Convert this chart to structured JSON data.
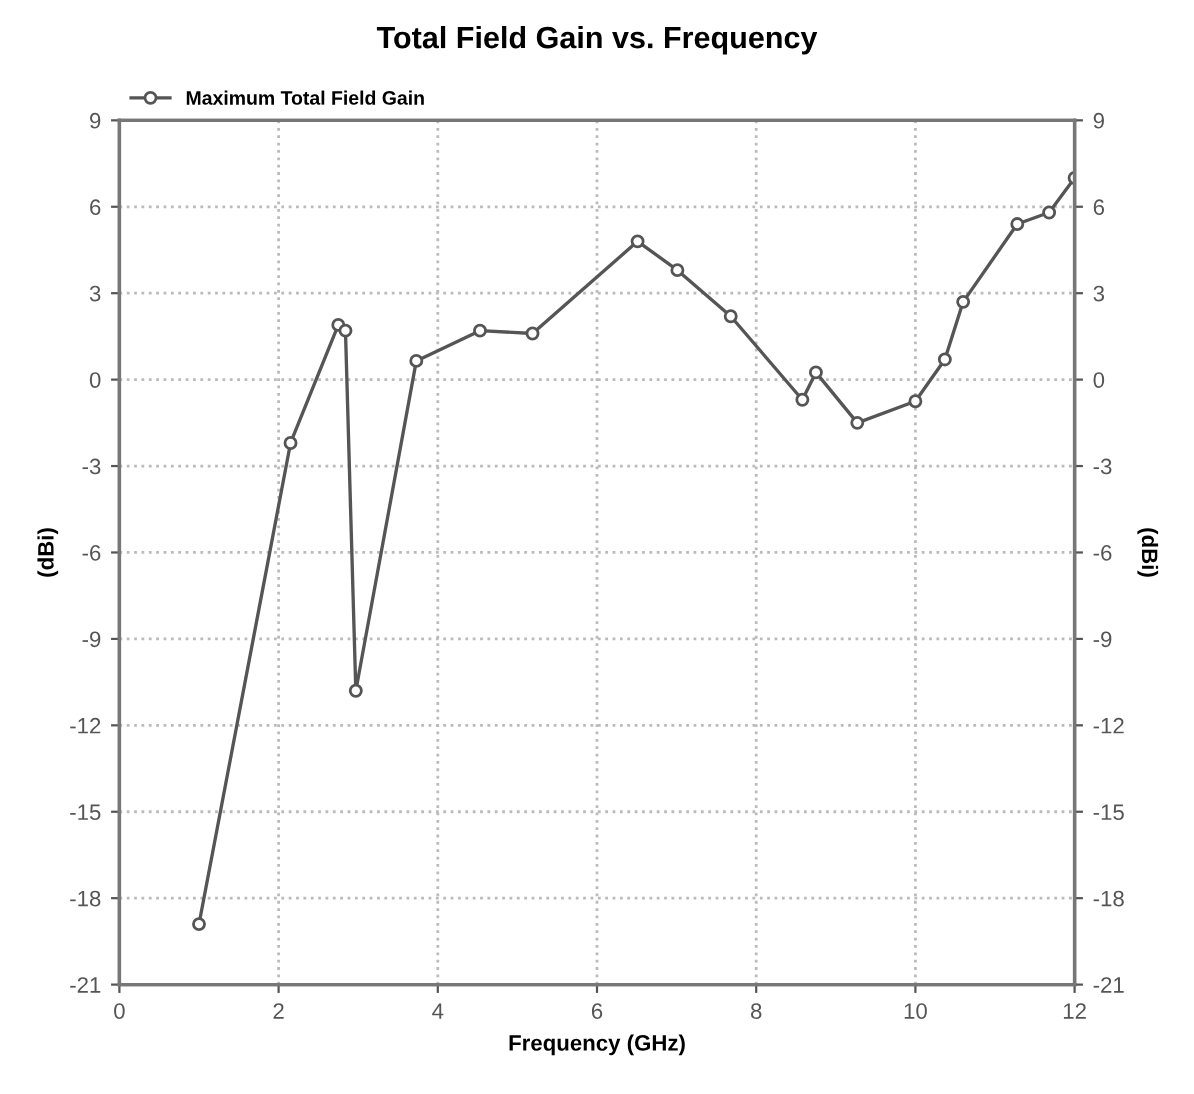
{
  "chart_data": {
    "type": "line",
    "title": "Total Field Gain vs. Frequency",
    "xlabel": "Frequency (GHz)",
    "ylabel": "(dBi)",
    "y2label": "(dBi)",
    "xlim": [
      0,
      12
    ],
    "xticks": [
      0,
      2,
      4,
      6,
      8,
      10,
      12
    ],
    "ylim": [
      -21,
      9
    ],
    "yticks": [
      -21,
      -18,
      -15,
      -12,
      -9,
      -6,
      -3,
      0,
      3,
      6,
      9
    ],
    "y2lim": [
      -21,
      9
    ],
    "y2ticks": [
      -21,
      -18,
      -15,
      -12,
      -9,
      -6,
      -3,
      0,
      3,
      6,
      9
    ],
    "grid": true,
    "legend": "top left",
    "marker": "circle",
    "line_style": "solid",
    "series": [
      {
        "name": "Maximum Total Field Gain",
        "color": "#555555",
        "x": [
          1.0,
          2.15,
          2.75,
          2.84,
          2.97,
          3.73,
          4.53,
          5.19,
          6.51,
          7.01,
          7.68,
          8.58,
          8.75,
          9.27,
          10.0,
          10.37,
          10.6,
          11.28,
          11.68,
          12.0
        ],
        "values": [
          -18.9,
          -2.2,
          1.9,
          1.7,
          -10.8,
          0.65,
          1.7,
          1.6,
          4.8,
          3.8,
          2.2,
          -0.7,
          0.25,
          -1.5,
          -0.75,
          0.7,
          2.7,
          5.4,
          5.8,
          7.0
        ]
      }
    ]
  }
}
